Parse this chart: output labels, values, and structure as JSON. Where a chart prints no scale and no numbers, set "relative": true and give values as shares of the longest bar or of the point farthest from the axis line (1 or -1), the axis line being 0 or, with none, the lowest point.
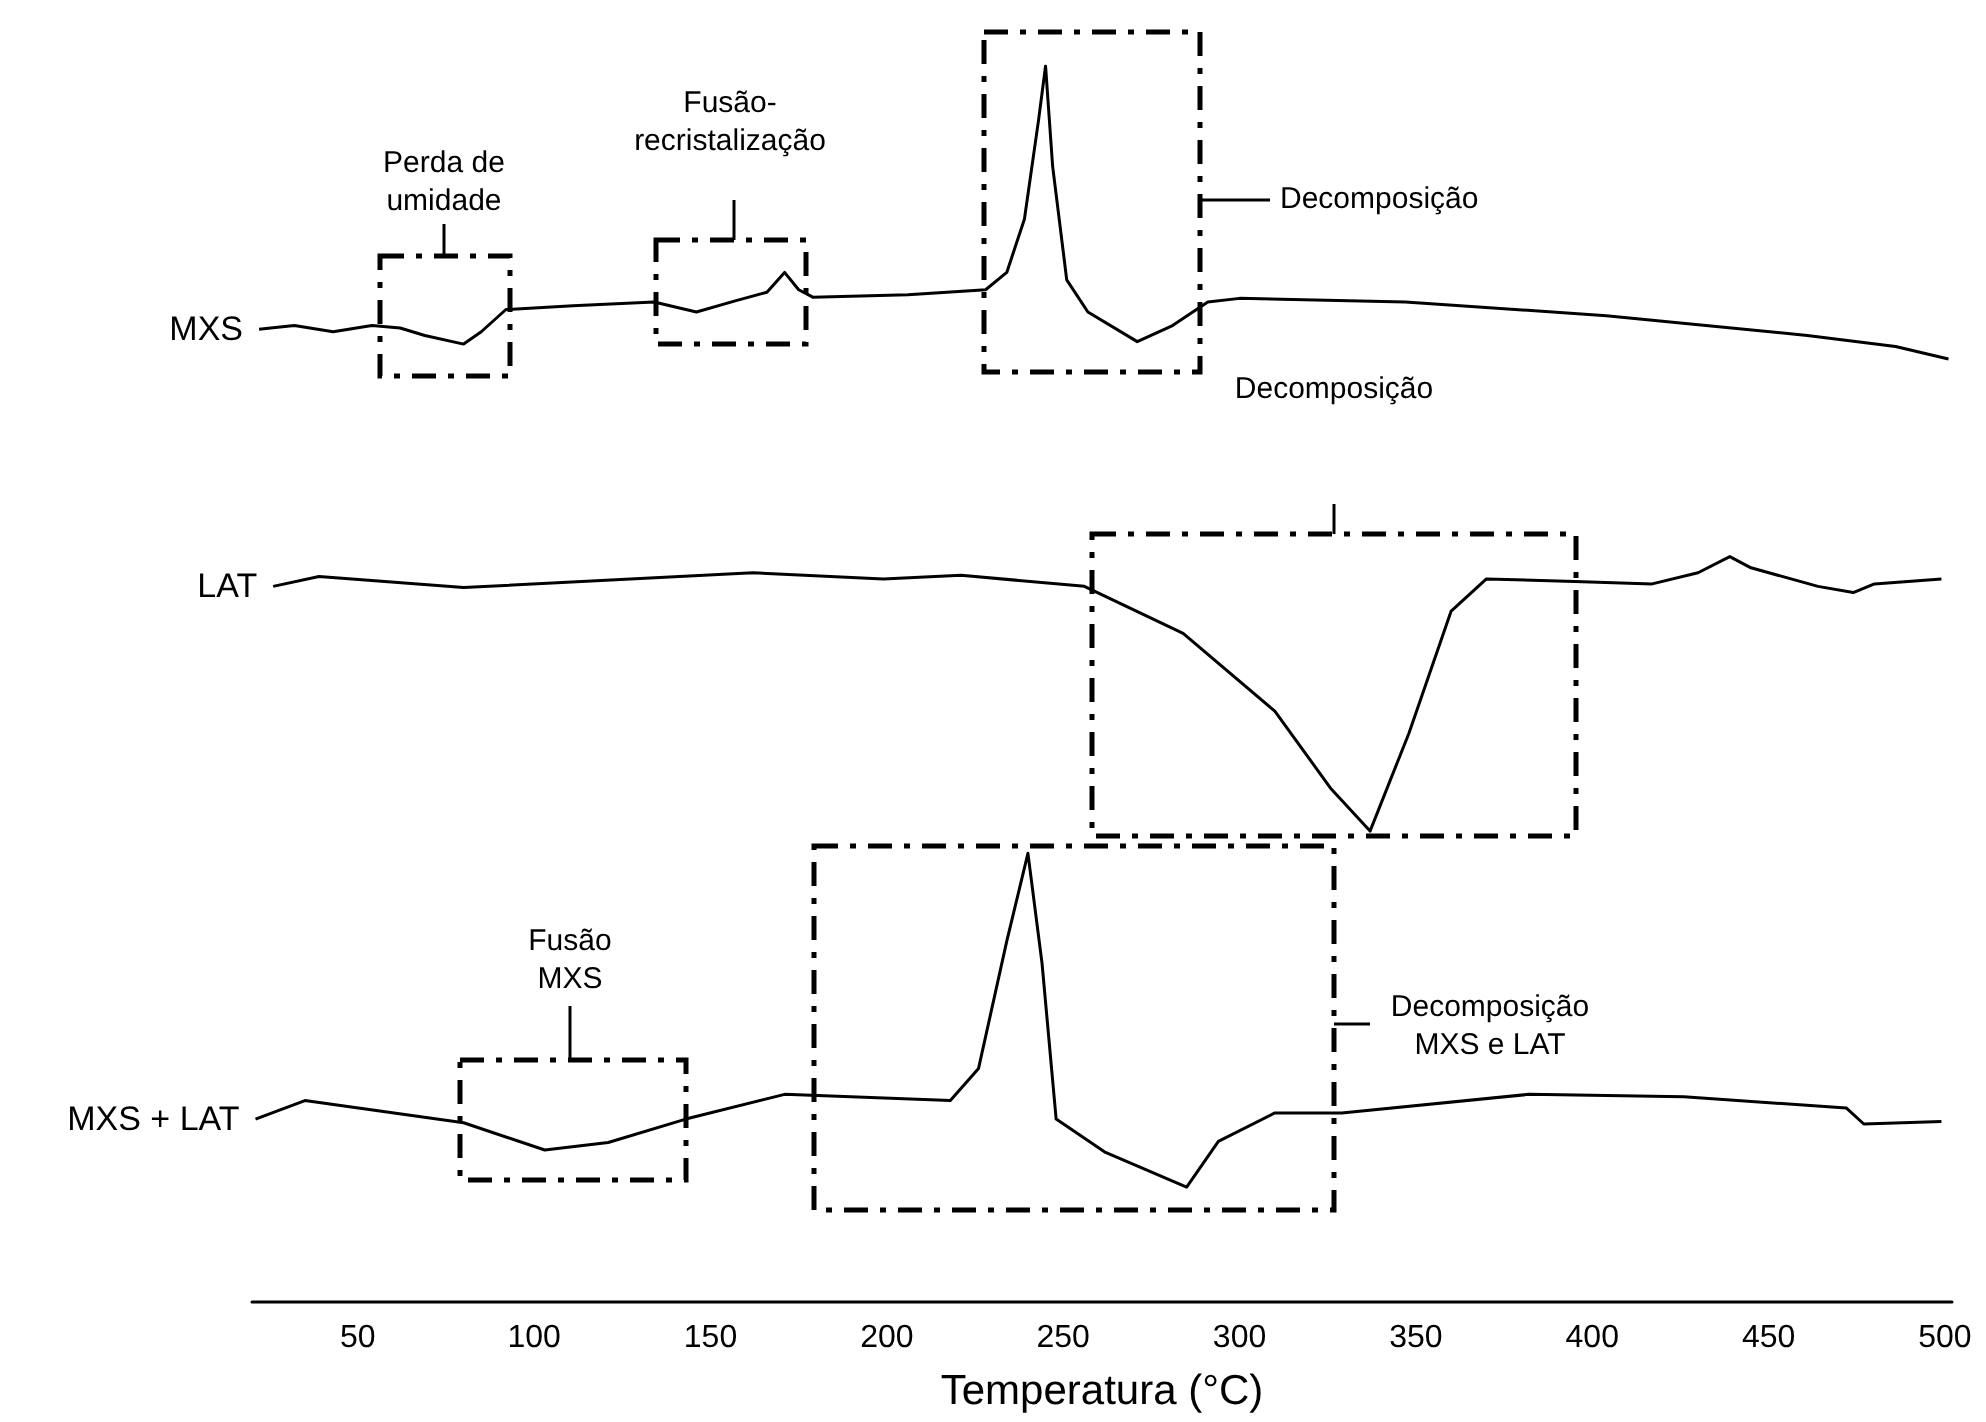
{
  "chart_data": {
    "type": "line",
    "relative": true,
    "xlabel": "Temperatura (°C)",
    "xlim": [
      20,
      502
    ],
    "xticks": [
      50,
      100,
      150,
      200,
      250,
      300,
      350,
      400,
      450,
      500
    ],
    "tick_labels": "x",
    "grid": false,
    "legend": false,
    "marker": "none",
    "line_style": "solid",
    "annotations": [
      "Perda de umidade",
      "Fusão-recristalização",
      "Decomposição",
      "Decomposição",
      "Fusão MXS",
      "Decomposição MXS e LAT"
    ],
    "series": [
      {
        "name": "MXS",
        "color": "#000000",
        "x": [
          22,
          32,
          43,
          54,
          62,
          69,
          80,
          85,
          92,
          111,
          134,
          146,
          157,
          166,
          171,
          175,
          179,
          206,
          228,
          234,
          239,
          243,
          245,
          247,
          251,
          257,
          271,
          281,
          291,
          300,
          347,
          404,
          461,
          486,
          501
        ],
        "values": [
          0.787,
          0.79,
          0.785,
          0.79,
          0.788,
          0.782,
          0.775,
          0.785,
          0.803,
          0.806,
          0.809,
          0.801,
          0.81,
          0.817,
          0.833,
          0.819,
          0.813,
          0.815,
          0.819,
          0.833,
          0.876,
          0.956,
          1.0,
          0.919,
          0.827,
          0.801,
          0.777,
          0.79,
          0.809,
          0.812,
          0.809,
          0.798,
          0.782,
          0.773,
          0.763
        ]
      },
      {
        "name": "LAT",
        "color": "#000000",
        "x": [
          26,
          39,
          80,
          162,
          199,
          221,
          256,
          284,
          310,
          326,
          337,
          348,
          360,
          370,
          395,
          417,
          430,
          439,
          445,
          464,
          474,
          480,
          499
        ],
        "values": [
          0.579,
          0.587,
          0.578,
          0.59,
          0.585,
          0.588,
          0.579,
          0.541,
          0.478,
          0.415,
          0.381,
          0.46,
          0.559,
          0.585,
          0.583,
          0.581,
          0.59,
          0.603,
          0.594,
          0.579,
          0.574,
          0.581,
          0.585
        ]
      },
      {
        "name": "MXS + LAT",
        "color": "#000000",
        "x": [
          21,
          35,
          80,
          103,
          121,
          143,
          171,
          218,
          226,
          234,
          240,
          244,
          248,
          262,
          285,
          294,
          310,
          329,
          382,
          426,
          472,
          477,
          499
        ],
        "values": [
          0.148,
          0.163,
          0.145,
          0.123,
          0.129,
          0.148,
          0.168,
          0.163,
          0.189,
          0.292,
          0.363,
          0.274,
          0.148,
          0.121,
          0.093,
          0.13,
          0.153,
          0.153,
          0.168,
          0.166,
          0.157,
          0.144,
          0.146
        ]
      }
    ]
  }
}
